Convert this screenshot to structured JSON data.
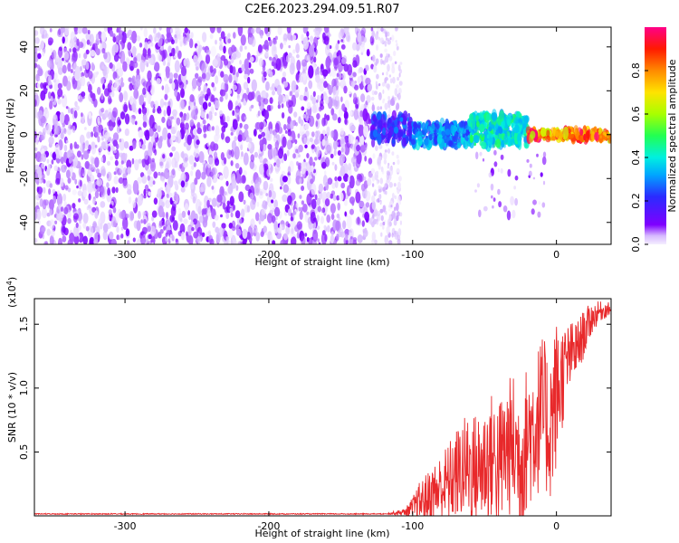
{
  "title": "C2E6.2023.294.09.51.R07",
  "colors": {
    "spectrogram_low": "#7f00ff",
    "spectrogram_high": "#ff0000",
    "snr_line": "#e8292b",
    "frame": "#000000"
  },
  "chart_data": [
    {
      "type": "heatmap",
      "title": "C2E6.2023.294.09.51.R07",
      "xlabel": "Height of straight line (km)",
      "ylabel": "Frequency (Hz)",
      "xlim": [
        -363,
        38
      ],
      "ylim": [
        -50,
        49
      ],
      "x_ticks": [
        -300,
        -200,
        -100,
        0
      ],
      "x_tick_labels": [
        "-300",
        "-200",
        "-100",
        "0"
      ],
      "y_ticks": [
        -40,
        -20,
        0,
        20,
        40
      ],
      "y_tick_labels": [
        "-40",
        "-20",
        "0",
        "20",
        "40"
      ],
      "grid": false,
      "colorbar": {
        "label": "Normalized spectral amplitude",
        "range": [
          0,
          1
        ],
        "ticks": [
          0,
          0.2,
          0.4,
          0.6,
          0.8
        ],
        "tick_labels": [
          "0.0",
          "0.2",
          "0.4",
          "0.6",
          "0.8"
        ],
        "colormap": "rainbow"
      },
      "regions": [
        {
          "x_range": [
            -363,
            -128
          ],
          "y_range": [
            -50,
            49
          ],
          "amplitude_range": [
            0.0,
            0.1
          ]
        },
        {
          "x_range": [
            -128,
            -108
          ],
          "y_range": [
            -50,
            49
          ],
          "amplitude_range": [
            0.0,
            0.05
          ]
        },
        {
          "x_range": [
            -128,
            -100
          ],
          "y_range": [
            -4,
            9
          ],
          "amplitude_range": [
            0.1,
            0.3
          ]
        },
        {
          "x_range": [
            -100,
            -60
          ],
          "y_range": [
            -5,
            5
          ],
          "amplitude_range": [
            0.2,
            0.4
          ]
        },
        {
          "x_range": [
            -60,
            -20
          ],
          "y_range": [
            -5,
            9
          ],
          "amplitude_range": [
            0.3,
            0.5
          ]
        },
        {
          "x_range": [
            -20,
            38
          ],
          "y_range": [
            -2,
            2
          ],
          "amplitude_range": [
            0.6,
            1.0
          ]
        }
      ],
      "tail": {
        "x_range": [
          -60,
          -8
        ],
        "y_range": [
          -38,
          -8
        ],
        "amplitude_range": [
          0.0,
          0.1
        ]
      }
    },
    {
      "type": "line",
      "xlabel": "Height of straight line (km)",
      "ylabel": "SNR (10 * v/v)",
      "y_multiplier": "(x10",
      "y_multiplier_exp": "4",
      "y_multiplier_close": ")",
      "xlim": [
        -363,
        38
      ],
      "ylim": [
        0,
        17000
      ],
      "x_ticks": [
        -300,
        -200,
        -100,
        0
      ],
      "x_tick_labels": [
        "-300",
        "-200",
        "-100",
        "0"
      ],
      "y_ticks": [
        5000,
        10000,
        15000
      ],
      "y_tick_labels": [
        "0.5",
        "1.0",
        "1.5"
      ],
      "grid": false,
      "series": [
        {
          "color": "#e8292b",
          "x": [
            -363,
            -300,
            -200,
            -120,
            -105,
            -100,
            -95,
            -90,
            -85,
            -80,
            -75,
            -70,
            -65,
            -60,
            -55,
            -50,
            -45,
            -40,
            -35,
            -30,
            -25,
            -20,
            -15,
            -10,
            -5,
            0,
            5,
            10,
            15,
            20,
            25,
            30,
            38
          ],
          "y": [
            150,
            150,
            150,
            150,
            300,
            600,
            1100,
            1400,
            1800,
            2200,
            2600,
            3200,
            3700,
            3800,
            3500,
            4100,
            4700,
            4000,
            5200,
            5600,
            4300,
            6300,
            7000,
            8200,
            6800,
            9500,
            11200,
            12600,
            13200,
            14500,
            15500,
            16000,
            16200
          ],
          "spread": [
            0,
            0,
            0,
            0,
            300,
            900,
            1600,
            2000,
            2400,
            2800,
            3200,
            3600,
            4000,
            4400,
            4600,
            4800,
            5000,
            5200,
            5400,
            5600,
            5700,
            5800,
            5900,
            6000,
            6000,
            6000,
            3800,
            2600,
            2200,
            1800,
            1200,
            800,
            500
          ]
        }
      ]
    }
  ]
}
